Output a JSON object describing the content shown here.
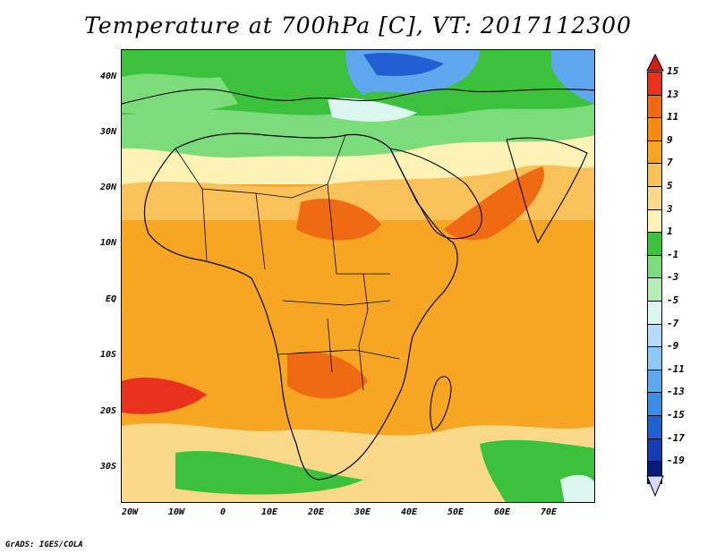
{
  "title": "Temperature at 700hPa [C], VT: 2017112300",
  "credit": "GrADS: IGES/COLA",
  "lat_ticks": [
    "40N",
    "30N",
    "20N",
    "10N",
    "EQ",
    "10S",
    "20S",
    "30S"
  ],
  "lon_ticks": [
    "20W",
    "10W",
    "0",
    "10E",
    "20E",
    "30E",
    "40E",
    "50E",
    "60E",
    "70E"
  ],
  "colorbar": {
    "labels": [
      "15",
      "13",
      "11",
      "9",
      "7",
      "5",
      "3",
      "1",
      "-1",
      "-3",
      "-5",
      "-7",
      "-9",
      "-11",
      "-13",
      "-15",
      "-17",
      "-19"
    ],
    "colors": [
      "#e8321e",
      "#f06a14",
      "#f48c12",
      "#f7a623",
      "#f9c159",
      "#fbd98a",
      "#fef3b4",
      "#3cc13c",
      "#7cdc7c",
      "#b4ecb4",
      "#dcf6f0",
      "#b4dcf8",
      "#8ccaf5",
      "#5fa8ee",
      "#3c8ee8",
      "#2060d0",
      "#143cb4",
      "#0a1a78"
    ],
    "top_arrow_color": "#d81e14",
    "bottom_arrow_color": "#d8d8f8"
  }
}
